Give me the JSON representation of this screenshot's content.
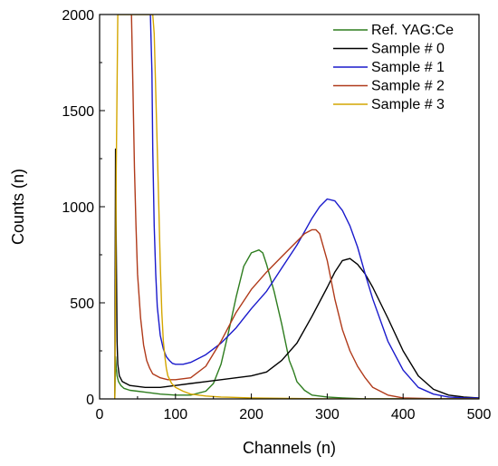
{
  "chart_data": {
    "type": "line",
    "xlabel": "Channels (n)",
    "ylabel": "Counts (n)",
    "xlim": [
      0,
      500
    ],
    "ylim": [
      0,
      2000
    ],
    "x_ticks": [
      "0",
      "100",
      "200",
      "300",
      "400",
      "500"
    ],
    "y_ticks": [
      "0",
      "500",
      "1000",
      "1500",
      "2000"
    ],
    "grid": false,
    "legend_position": "top-right",
    "series": [
      {
        "name": "Ref. YAG:Ce",
        "color": "#2e7d1f",
        "x": [
          20,
          21,
          22,
          23,
          25,
          28,
          32,
          40,
          50,
          60,
          80,
          100,
          120,
          140,
          150,
          160,
          170,
          180,
          190,
          200,
          210,
          215,
          220,
          230,
          240,
          250,
          255,
          260,
          270,
          280,
          300,
          320,
          350,
          400,
          450,
          500
        ],
        "y": [
          0,
          220,
          160,
          120,
          90,
          70,
          55,
          45,
          40,
          35,
          25,
          20,
          20,
          40,
          80,
          180,
          350,
          530,
          690,
          760,
          775,
          760,
          700,
          560,
          390,
          200,
          150,
          90,
          45,
          20,
          10,
          5,
          0,
          0,
          0,
          0
        ]
      },
      {
        "name": "Sample # 0",
        "color": "#000000",
        "x": [
          20,
          21,
          22,
          23,
          24,
          26,
          30,
          40,
          60,
          80,
          100,
          120,
          140,
          160,
          180,
          200,
          220,
          240,
          260,
          280,
          300,
          310,
          320,
          330,
          340,
          350,
          360,
          380,
          400,
          420,
          440,
          460,
          480,
          500
        ],
        "y": [
          0,
          1300,
          800,
          300,
          180,
          120,
          90,
          70,
          60,
          60,
          70,
          80,
          90,
          100,
          110,
          120,
          140,
          200,
          290,
          430,
          580,
          660,
          720,
          730,
          700,
          650,
          580,
          420,
          250,
          120,
          50,
          20,
          10,
          5
        ]
      },
      {
        "name": "Sample # 1",
        "color": "#1a1acc",
        "x": [
          67,
          69,
          70,
          72,
          74,
          76,
          80,
          84,
          88,
          92,
          96,
          100,
          110,
          120,
          140,
          160,
          180,
          200,
          220,
          240,
          260,
          270,
          280,
          290,
          300,
          310,
          320,
          330,
          340,
          350,
          360,
          380,
          400,
          420,
          440,
          460,
          480,
          500
        ],
        "y": [
          2000,
          1700,
          1300,
          900,
          650,
          480,
          330,
          260,
          220,
          200,
          185,
          180,
          180,
          190,
          230,
          290,
          370,
          470,
          560,
          680,
          800,
          870,
          940,
          1000,
          1040,
          1030,
          980,
          900,
          790,
          650,
          520,
          300,
          150,
          60,
          25,
          10,
          5,
          5
        ]
      },
      {
        "name": "Sample # 2",
        "color": "#b03a1a",
        "x": [
          42,
          44,
          46,
          48,
          50,
          54,
          58,
          62,
          66,
          70,
          80,
          90,
          100,
          120,
          140,
          160,
          180,
          200,
          220,
          240,
          260,
          270,
          280,
          285,
          290,
          300,
          310,
          320,
          330,
          340,
          350,
          360,
          380,
          400,
          450,
          500
        ],
        "y": [
          2000,
          1600,
          1200,
          900,
          650,
          420,
          280,
          200,
          160,
          130,
          110,
          100,
          100,
          110,
          170,
          300,
          450,
          570,
          660,
          740,
          820,
          860,
          880,
          880,
          860,
          720,
          520,
          360,
          250,
          170,
          110,
          60,
          20,
          5,
          0,
          0
        ]
      },
      {
        "name": "Sample # 3",
        "color": "#d4a600",
        "x": [
          20,
          21,
          22,
          24,
          26,
          28,
          30,
          40,
          50,
          60,
          66,
          70,
          72,
          74,
          76,
          78,
          80,
          82,
          84,
          86,
          88,
          90,
          95,
          100,
          110,
          120,
          140,
          160,
          200,
          300,
          400,
          500
        ],
        "y": [
          0,
          500,
          1200,
          2000,
          2000,
          2000,
          2000,
          2000,
          2000,
          2000,
          2000,
          2000,
          1900,
          1600,
          1300,
          1000,
          700,
          450,
          300,
          220,
          160,
          120,
          80,
          60,
          40,
          25,
          15,
          10,
          5,
          0,
          0,
          0
        ]
      }
    ]
  }
}
